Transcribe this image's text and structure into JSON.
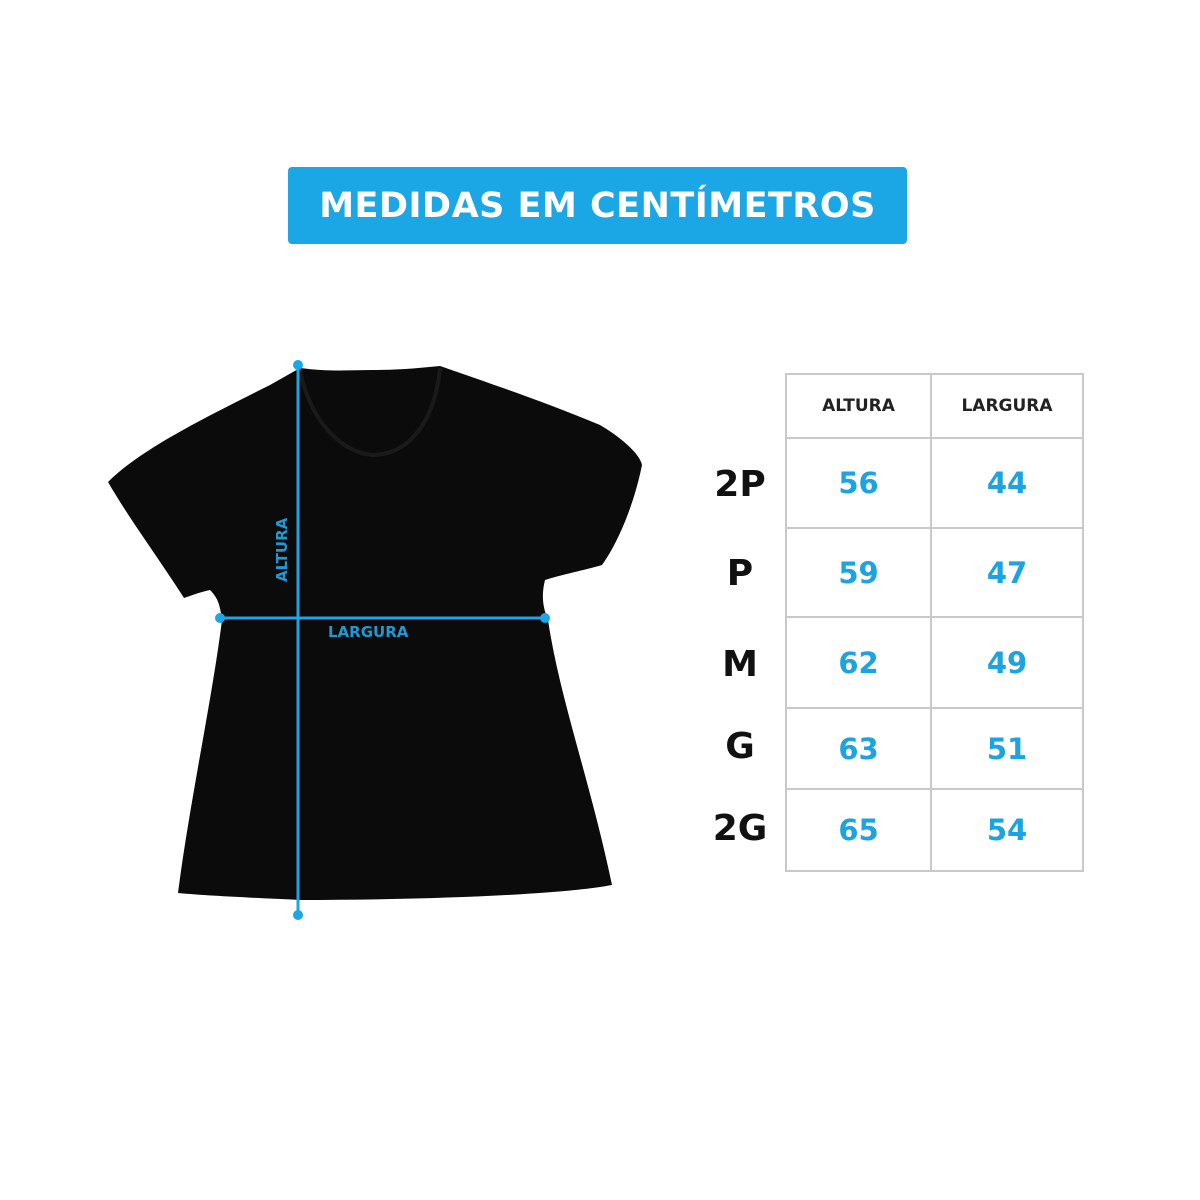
{
  "title": "MEDIDAS EM CENTÍMETROS",
  "diagram": {
    "height_label": "ALTURA",
    "width_label": "LARGURA",
    "accent_color": "#1ba6e6",
    "shirt_color": "#0a0a0a"
  },
  "table": {
    "headers": [
      "ALTURA",
      "LARGURA"
    ],
    "rows": [
      {
        "size": "2P",
        "altura": "56",
        "largura": "44"
      },
      {
        "size": "P",
        "altura": "59",
        "largura": "47"
      },
      {
        "size": "M",
        "altura": "62",
        "largura": "49"
      },
      {
        "size": "G",
        "altura": "63",
        "largura": "51"
      },
      {
        "size": "2G",
        "altura": "65",
        "largura": "54"
      }
    ]
  }
}
